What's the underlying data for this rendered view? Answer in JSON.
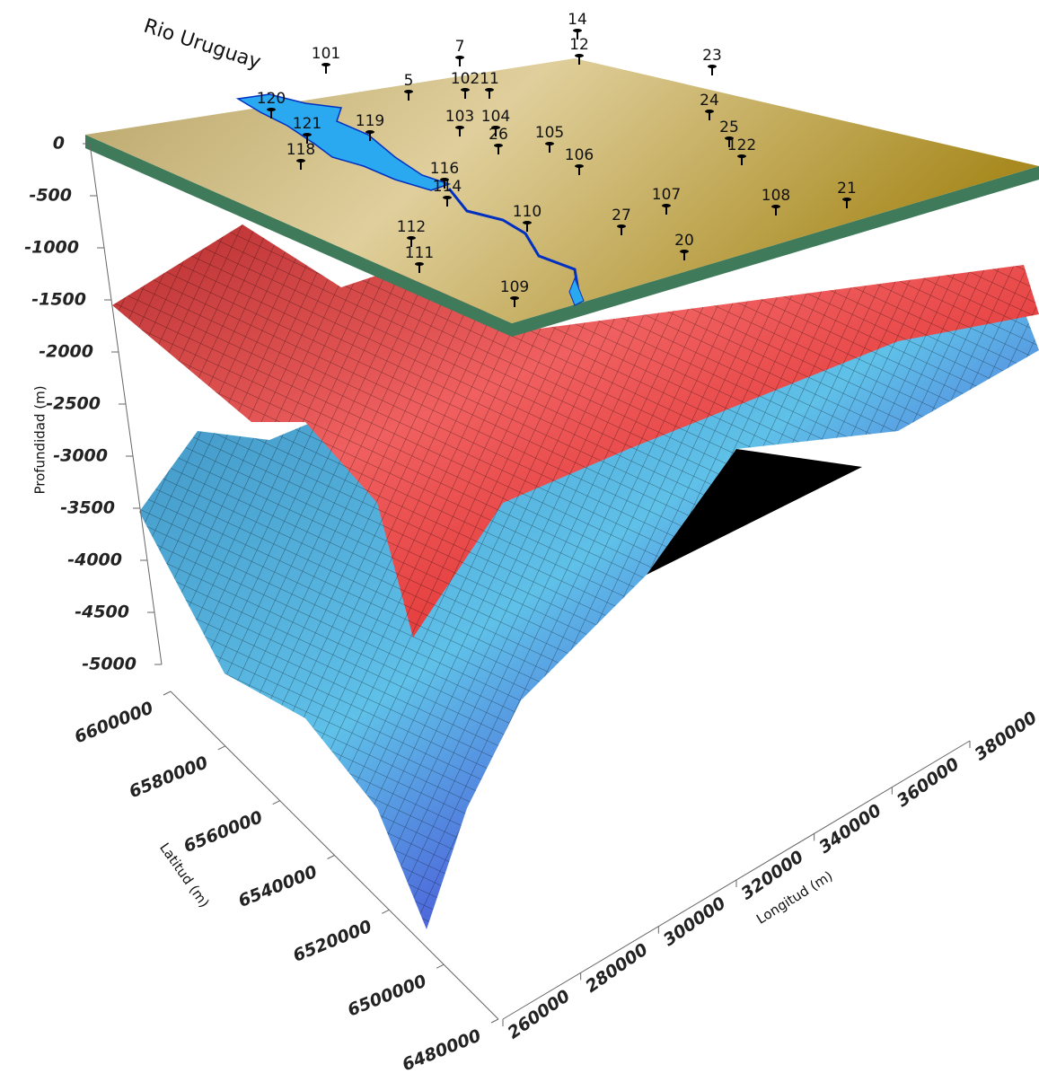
{
  "chart_data": {
    "type": "surface3d",
    "annotation": "Rio Uruguay",
    "zlabel": "Profundidad (m)",
    "ylabel": "Latitud (m)",
    "xlabel": "Longitud (m)",
    "zlim": [
      -5000,
      0
    ],
    "zticks": [
      -5000,
      -4500,
      -4000,
      -3500,
      -3000,
      -2500,
      -2000,
      -1500,
      -1000,
      -500,
      0
    ],
    "ylim": [
      6480000,
      6600000
    ],
    "yticks": [
      6480000,
      6500000,
      6520000,
      6540000,
      6560000,
      6580000,
      6600000
    ],
    "xlim": [
      260000,
      380000
    ],
    "xticks": [
      260000,
      280000,
      300000,
      320000,
      340000,
      360000,
      380000
    ],
    "wells": [
      "14",
      "12",
      "101",
      "7",
      "23",
      "102",
      "11",
      "5",
      "120",
      "24",
      "103",
      "104",
      "121",
      "119",
      "26",
      "105",
      "25",
      "122",
      "106",
      "118",
      "116",
      "114",
      "107",
      "108",
      "21",
      "110",
      "27",
      "112",
      "20",
      "111",
      "109"
    ]
  }
}
